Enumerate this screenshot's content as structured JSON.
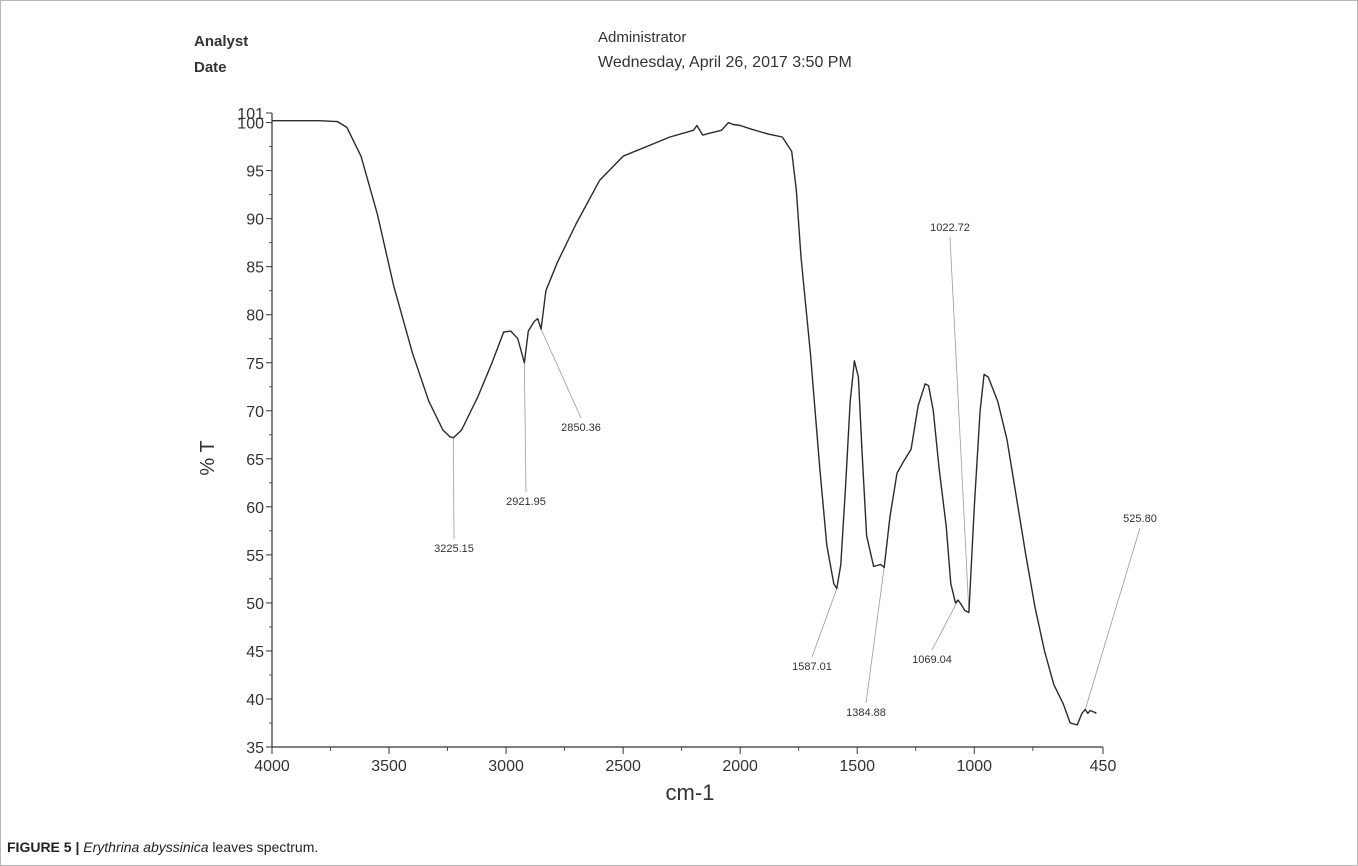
{
  "header": {
    "analyst_label": "Analyst",
    "date_label": "Date",
    "analyst_value": "Administrator",
    "date_value": "Wednesday, April 26, 2017 3:50 PM"
  },
  "caption": {
    "figure_number": "FIGURE 5 |",
    "species": "Erythrina abyssinica",
    "rest": " leaves spectrum."
  },
  "colors": {
    "trace": "#2b2b2b",
    "axis": "#333333",
    "leader": "#9a9a9a"
  },
  "chart_data": {
    "type": "line",
    "xlabel": "cm-1",
    "ylabel": "% T",
    "x_reversed": true,
    "xlim": [
      4000,
      450
    ],
    "ylim": [
      35,
      101
    ],
    "x_ticks": [
      4000,
      3500,
      3000,
      2500,
      2000,
      1500,
      1000,
      450
    ],
    "y_ticks": [
      35,
      40,
      45,
      50,
      55,
      60,
      65,
      70,
      75,
      80,
      85,
      90,
      95,
      100,
      101
    ],
    "grid": false,
    "series": [
      {
        "x": [
          4000,
          3800,
          3720,
          3680,
          3620,
          3550,
          3480,
          3400,
          3330,
          3270,
          3240,
          3225.15,
          3190,
          3120,
          3060,
          3010,
          2980,
          2950,
          2921.95,
          2905,
          2880,
          2865,
          2850.36,
          2830,
          2780,
          2700,
          2600,
          2500,
          2400,
          2300,
          2200,
          2185,
          2160,
          2130,
          2080,
          2050,
          2030,
          2000,
          1950,
          1880,
          1820,
          1780,
          1760,
          1740,
          1700,
          1660,
          1630,
          1600,
          1587.01,
          1570,
          1550,
          1530,
          1512,
          1495,
          1480,
          1460,
          1430,
          1400,
          1384.88,
          1360,
          1330,
          1300,
          1270,
          1240,
          1210,
          1195,
          1175,
          1150,
          1120,
          1100,
          1080,
          1069.04,
          1055,
          1040,
          1022.72,
          1000,
          975,
          958,
          940,
          900,
          860,
          820,
          780,
          740,
          700,
          660,
          620,
          590,
          560,
          540,
          530,
          525.8,
          515,
          505,
          495,
          485,
          478
        ],
        "y": [
          100.2,
          100.2,
          100.1,
          99.5,
          96.5,
          90.5,
          83,
          76,
          71,
          68,
          67.3,
          67.2,
          68,
          71.5,
          75,
          78.2,
          78.3,
          77.5,
          75,
          78.3,
          79.3,
          79.6,
          78.5,
          82.5,
          85.5,
          89.5,
          94,
          96.5,
          97.5,
          98.5,
          99.2,
          99.7,
          98.7,
          98.9,
          99.2,
          100,
          99.8,
          99.7,
          99.3,
          98.8,
          98.5,
          97,
          93,
          86,
          76,
          64,
          56,
          52,
          51.5,
          54,
          62,
          71,
          75.2,
          73.5,
          66,
          57,
          53.8,
          54,
          53.7,
          59,
          63.5,
          64.8,
          66,
          70.5,
          72.8,
          72.6,
          70,
          64,
          58,
          52,
          50,
          50.3,
          49.8,
          49.2,
          49,
          60,
          70,
          73.8,
          73.5,
          71,
          67,
          61,
          55,
          49.5,
          45,
          41.5,
          39.5,
          37.5,
          37.3,
          38.5,
          38.8,
          38.9,
          38.5,
          38.8,
          38.7,
          38.6,
          38.5
        ]
      }
    ],
    "peak_labels": [
      {
        "text": "3225.15",
        "x": 3225.15
      },
      {
        "text": "2921.95",
        "x": 2921.95
      },
      {
        "text": "2850.36",
        "x": 2850.36
      },
      {
        "text": "1587.01",
        "x": 1587.01
      },
      {
        "text": "1384.88",
        "x": 1384.88
      },
      {
        "text": "1069.04",
        "x": 1069.04
      },
      {
        "text": "1022.72",
        "x": 1022.72
      },
      {
        "text": "525.80",
        "x": 525.8
      }
    ]
  }
}
